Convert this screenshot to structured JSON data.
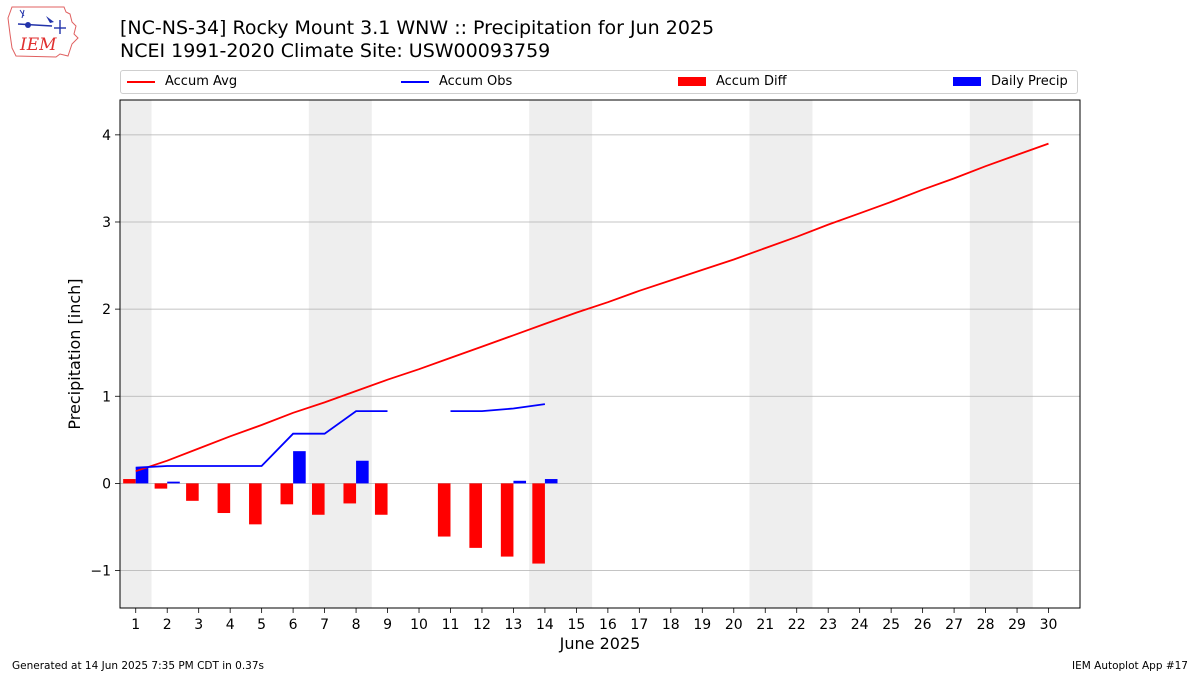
{
  "header": {
    "title_line1": "[NC-NS-34] Rocky Mount 3.1 WNW :: Precipitation for Jun 2025",
    "title_line2": "NCEI 1991-2020 Climate Site: USW00093759",
    "logo_text": "IEM"
  },
  "legend": {
    "accum_avg": "Accum Avg",
    "accum_obs": "Accum Obs",
    "accum_diff": "Accum Diff",
    "daily_precip": "Daily Precip"
  },
  "footer": {
    "generated": "Generated at 14 Jun 2025 7:35 PM CDT in 0.37s",
    "app": "IEM Autoplot App #17"
  },
  "colors": {
    "accum_avg": "#ff0000",
    "accum_obs": "#0000ff",
    "accum_diff": "#ff0000",
    "daily_precip": "#0000ff",
    "weekend_shade": "#eeeeee",
    "grid": "#b0b0b0"
  },
  "chart_data": {
    "type": "bar",
    "title": "[NC-NS-34] Rocky Mount 3.1 WNW :: Precipitation for Jun 2025",
    "subtitle": "NCEI 1991-2020 Climate Site: USW00093759",
    "xlabel": "June 2025",
    "ylabel": "Precipitation [inch]",
    "xlim": [
      0.5,
      31
    ],
    "ylim": [
      -1.43,
      4.4
    ],
    "x_ticks": [
      1,
      2,
      3,
      4,
      5,
      6,
      7,
      8,
      9,
      10,
      11,
      12,
      13,
      14,
      15,
      16,
      17,
      18,
      19,
      20,
      21,
      22,
      23,
      24,
      25,
      26,
      27,
      28,
      29,
      30
    ],
    "y_ticks": [
      -1,
      0,
      1,
      2,
      3,
      4
    ],
    "grid": "horizontal",
    "legend_position": "top",
    "weekend_bands": [
      [
        0.5,
        1.5
      ],
      [
        6.5,
        8.5
      ],
      [
        13.5,
        15.5
      ],
      [
        20.5,
        22.5
      ],
      [
        27.5,
        29.5
      ]
    ],
    "series": [
      {
        "name": "Accum Avg",
        "type": "line",
        "x": [
          1,
          2,
          3,
          4,
          5,
          6,
          7,
          8,
          9,
          10,
          11,
          12,
          13,
          14,
          15,
          16,
          17,
          18,
          19,
          20,
          21,
          22,
          23,
          24,
          25,
          26,
          27,
          28,
          29,
          30
        ],
        "values": [
          0.14,
          0.26,
          0.4,
          0.54,
          0.67,
          0.81,
          0.93,
          1.06,
          1.19,
          1.31,
          1.44,
          1.57,
          1.7,
          1.83,
          1.96,
          2.08,
          2.21,
          2.33,
          2.45,
          2.57,
          2.7,
          2.83,
          2.97,
          3.1,
          3.23,
          3.37,
          3.5,
          3.64,
          3.77,
          3.9
        ]
      },
      {
        "name": "Accum Obs",
        "type": "line",
        "x": [
          1,
          2,
          3,
          4,
          5,
          6,
          7,
          8,
          9,
          10,
          11,
          12,
          13,
          14
        ],
        "values": [
          0.18,
          0.2,
          0.2,
          0.2,
          0.2,
          0.57,
          0.57,
          0.83,
          0.83,
          null,
          0.83,
          0.83,
          0.86,
          0.91
        ]
      },
      {
        "name": "Accum Diff",
        "type": "bar",
        "x": [
          1,
          2,
          3,
          4,
          5,
          6,
          7,
          8,
          9,
          10,
          11,
          12,
          13,
          14
        ],
        "values": [
          0.05,
          -0.06,
          -0.2,
          -0.34,
          -0.47,
          -0.24,
          -0.36,
          -0.23,
          -0.36,
          null,
          -0.61,
          -0.74,
          -0.84,
          -0.92
        ]
      },
      {
        "name": "Daily Precip",
        "type": "bar",
        "x": [
          1,
          2,
          3,
          4,
          5,
          6,
          7,
          8,
          9,
          10,
          11,
          12,
          13,
          14
        ],
        "values": [
          0.18,
          0.02,
          0,
          0,
          0,
          0.37,
          0,
          0.26,
          0,
          null,
          0,
          0,
          0.03,
          0.05
        ]
      }
    ]
  }
}
